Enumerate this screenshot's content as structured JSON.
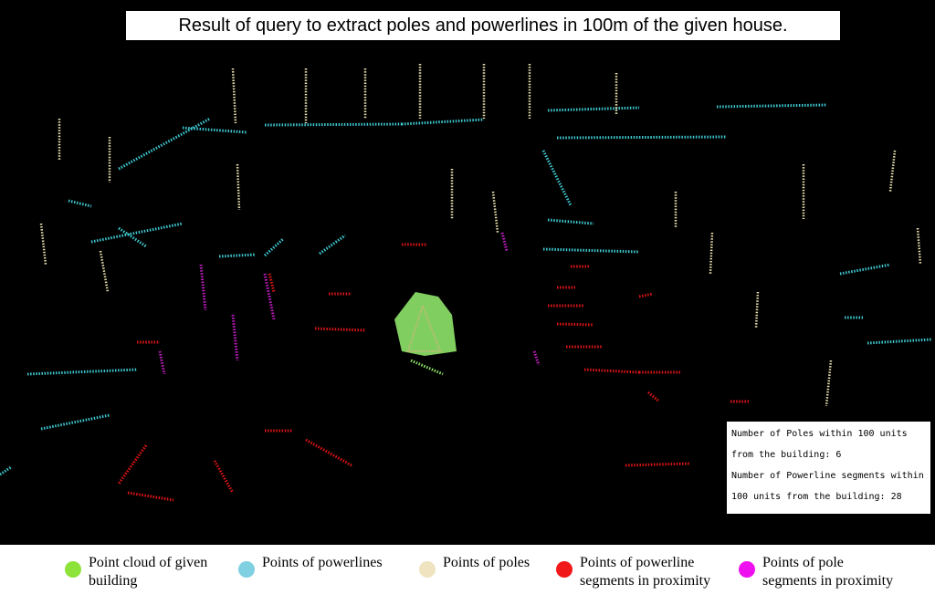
{
  "title": "Result of query to extract poles and powerlines in 100m of the given house.",
  "info_box": {
    "lines": [
      "Number of Poles within 100 units",
      "from the building: 6",
      "Number of Powerline segments within",
      "100 units from the building: 28"
    ]
  },
  "legend": [
    {
      "label": [
        "Point cloud of given",
        "building"
      ],
      "color": "#8ee33a"
    },
    {
      "label": [
        "Points of powerlines"
      ],
      "color": "#7fd0e0"
    },
    {
      "label": [
        "Points of poles"
      ],
      "color": "#efe3c0"
    },
    {
      "label": [
        "Points of powerline",
        "segments in proximity"
      ],
      "color": "#f01818"
    },
    {
      "label": [
        "Points of pole",
        "segments in proximity"
      ],
      "color": "#ee10ee"
    }
  ]
}
